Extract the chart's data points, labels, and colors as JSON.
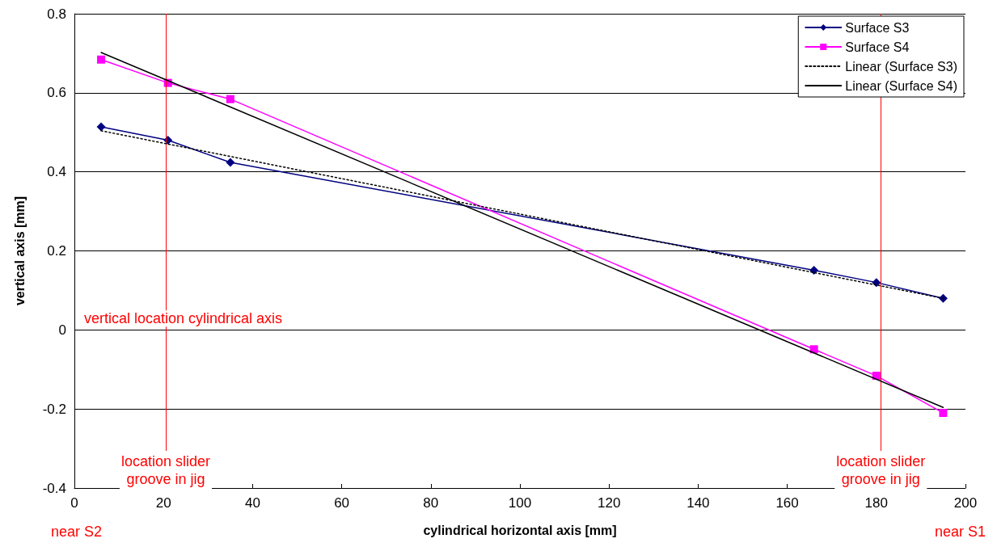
{
  "chart_data": {
    "type": "line",
    "xlabel": "cylindrical horizontal axis [mm]",
    "ylabel": "vertical axis [mm]",
    "xlim": [
      0,
      200
    ],
    "xticks": [
      0,
      20,
      40,
      60,
      80,
      100,
      120,
      140,
      160,
      180,
      200
    ],
    "ylim": [
      -0.4,
      0.8
    ],
    "yticks": [
      -0.4,
      -0.2,
      0,
      0.2,
      0.4,
      0.6,
      0.8
    ],
    "grid": "y",
    "legend": "top right",
    "series": [
      {
        "name": "Surface S3",
        "color": "#000080",
        "marker": "diamond",
        "line_style": "solid",
        "x": [
          6,
          21,
          35,
          166,
          180,
          195
        ],
        "values": [
          0.514,
          0.48,
          0.424,
          0.151,
          0.12,
          0.08
        ]
      },
      {
        "name": "Surface S4",
        "color": "#ff00ff",
        "marker": "square",
        "line_style": "solid",
        "x": [
          6,
          21,
          35,
          166,
          180,
          195
        ],
        "values": [
          0.684,
          0.625,
          0.584,
          -0.049,
          -0.116,
          -0.21
        ]
      },
      {
        "name": "Linear (Surface S3)",
        "color": "#000000",
        "marker": "none",
        "line_style": "dotted",
        "x": [
          6,
          195
        ],
        "values": [
          0.504,
          0.08
        ]
      },
      {
        "name": "Linear (Surface S4)",
        "color": "#000000",
        "marker": "none",
        "line_style": "solid",
        "x": [
          6,
          195
        ],
        "values": [
          0.702,
          -0.196
        ]
      }
    ],
    "ref_lines": [
      {
        "axis": "x",
        "value": 20.5,
        "label": "location slider\ngroove in jig",
        "color": "#ff0000"
      },
      {
        "axis": "x",
        "value": 181,
        "label": "location slider\ngroove in jig",
        "color": "#ff0000"
      }
    ],
    "annotations": [
      "vertical location cylindrical axis",
      "near S2",
      "near S1"
    ]
  }
}
